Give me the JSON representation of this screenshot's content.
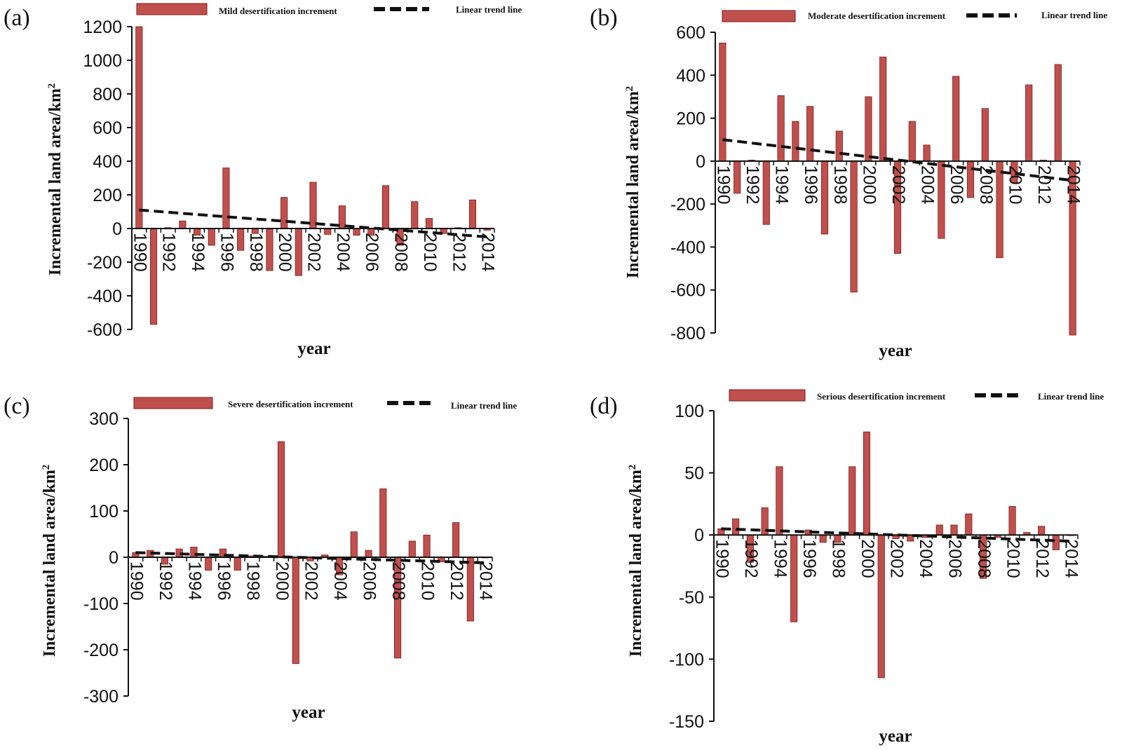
{
  "bar_color": "#c0504d",
  "bar_stroke": "#7a1a1a",
  "trend_color": "#111111",
  "chart_data": [
    {
      "panel": "(a)",
      "type": "bar",
      "series_name": "Mild desertification increment",
      "trend_name": "Linear trend line",
      "xlabel": "year",
      "ylabel": "Incremental land area/km",
      "ylabel_sup": "2",
      "ylim": [
        -600,
        1200
      ],
      "yticks": [
        -600,
        -400,
        -200,
        0,
        200,
        400,
        600,
        800,
        1000,
        1200
      ],
      "ytick_labels": [
        "-600",
        "-400",
        "-200",
        "0",
        "200",
        "400",
        "600",
        "800",
        "1000",
        "1200"
      ],
      "categories": [
        "1990",
        "1991",
        "1992",
        "1993",
        "1994",
        "1995",
        "1996",
        "1997",
        "1998",
        "1999",
        "2000",
        "2001",
        "2002",
        "2003",
        "2004",
        "2005",
        "2006",
        "2007",
        "2008",
        "2009",
        "2010",
        "2011",
        "2012",
        "2013",
        "2014"
      ],
      "xtick_labels": [
        "1990",
        "1992",
        "1994",
        "1996",
        "1998",
        "2000",
        "2002",
        "2004",
        "2006",
        "2008",
        "2010",
        "2012",
        "2014"
      ],
      "values": [
        1200,
        -570,
        5,
        45,
        -40,
        -100,
        360,
        -130,
        -30,
        -250,
        185,
        -280,
        275,
        -35,
        135,
        -40,
        -40,
        255,
        -100,
        160,
        60,
        -30,
        5,
        170,
        -10
      ],
      "trend": [
        110,
        -50
      ]
    },
    {
      "panel": "(b)",
      "type": "bar",
      "series_name": "Moderate desertification increment",
      "trend_name": "Linear trend line",
      "xlabel": "year",
      "ylabel": "Incremental land area/km",
      "ylabel_sup": "2",
      "ylim": [
        -800,
        600
      ],
      "yticks": [
        -800,
        -600,
        -400,
        -200,
        0,
        200,
        400,
        600
      ],
      "ytick_labels": [
        "-800",
        "-600",
        "-400",
        "-200",
        "0",
        "200",
        "400",
        "600"
      ],
      "categories": [
        "1990",
        "1991",
        "1992",
        "1993",
        "1994",
        "1995",
        "1996",
        "1997",
        "1998",
        "1999",
        "2000",
        "2001",
        "2002",
        "2003",
        "2004",
        "2005",
        "2006",
        "2007",
        "2008",
        "2009",
        "2010",
        "2011",
        "2012",
        "2013",
        "2014"
      ],
      "xtick_labels": [
        "1990",
        "1992",
        "1994",
        "1996",
        "1998",
        "2000",
        "2002",
        "2004",
        "2006",
        "2008",
        "2010",
        "2012",
        "2014"
      ],
      "values": [
        550,
        -150,
        5,
        -295,
        305,
        185,
        255,
        -340,
        140,
        -610,
        300,
        485,
        -430,
        185,
        75,
        -360,
        395,
        -170,
        245,
        -450,
        -100,
        355,
        5,
        450,
        -810
      ],
      "trend": [
        100,
        -90
      ]
    },
    {
      "panel": "(c)",
      "type": "bar",
      "series_name": "Severe desertification increment",
      "trend_name": "Linear trend line",
      "xlabel": "year",
      "ylabel": "Incremental land area/km",
      "ylabel_sup": "2",
      "ylim": [
        -300,
        300
      ],
      "yticks": [
        -300,
        -200,
        -100,
        0,
        100,
        200,
        300
      ],
      "ytick_labels": [
        "-300",
        "-200",
        "-100",
        "0",
        "100",
        "200",
        "300"
      ],
      "categories": [
        "1990",
        "1991",
        "1992",
        "1993",
        "1994",
        "1995",
        "1996",
        "1997",
        "1998",
        "1999",
        "2000",
        "2001",
        "2002",
        "2003",
        "2004",
        "2005",
        "2006",
        "2007",
        "2008",
        "2009",
        "2010",
        "2011",
        "2012",
        "2013",
        "2014"
      ],
      "xtick_labels": [
        "1990",
        "1992",
        "1994",
        "1996",
        "1998",
        "2000",
        "2002",
        "2004",
        "2006",
        "2008",
        "2010",
        "2012",
        "2014"
      ],
      "values": [
        10,
        15,
        -15,
        18,
        22,
        -28,
        18,
        -28,
        3,
        2,
        250,
        -230,
        -8,
        5,
        -38,
        55,
        15,
        148,
        -218,
        35,
        48,
        -10,
        75,
        -138,
        0
      ],
      "trend": [
        10,
        -12
      ]
    },
    {
      "panel": "(d)",
      "type": "bar",
      "series_name": "Serious desertification increment",
      "trend_name": "Linear trend line",
      "xlabel": "year",
      "ylabel": "Incremental land area/km",
      "ylabel_sup": "2",
      "ylim": [
        -150,
        100
      ],
      "yticks": [
        -150,
        -100,
        -50,
        0,
        50,
        100
      ],
      "ytick_labels": [
        "-150",
        "-100",
        "-50",
        "0",
        "50",
        "100"
      ],
      "categories": [
        "1990",
        "1991",
        "1992",
        "1993",
        "1994",
        "1995",
        "1996",
        "1997",
        "1998",
        "1999",
        "2000",
        "2001",
        "2002",
        "2003",
        "2004",
        "2005",
        "2006",
        "2007",
        "2008",
        "2009",
        "2010",
        "2011",
        "2012",
        "2013",
        "2014"
      ],
      "xtick_labels": [
        "1990",
        "1992",
        "1994",
        "1996",
        "1998",
        "2000",
        "2002",
        "2004",
        "2006",
        "2008",
        "2010",
        "2012",
        "2014"
      ],
      "values": [
        5,
        13,
        -22,
        22,
        55,
        -70,
        4,
        -6,
        -6,
        55,
        83,
        -115,
        -3,
        -5,
        -2,
        8,
        8,
        17,
        -35,
        -2,
        23,
        2,
        7,
        -12,
        0
      ],
      "trend": [
        5,
        -5
      ]
    }
  ]
}
